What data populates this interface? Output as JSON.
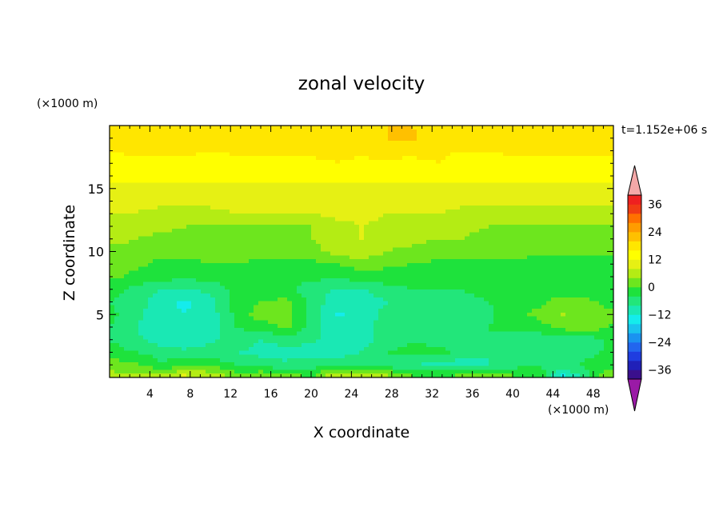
{
  "chart_data": {
    "type": "heatmap",
    "title": "zonal velocity",
    "xlabel": "X coordinate",
    "ylabel": "Z coordinate",
    "x_unit_label": "(×1000 m)",
    "y_unit_label": "(×1000 m)",
    "time_label": "t=1.152e+06 s",
    "xlim": [
      0,
      50
    ],
    "ylim": [
      0,
      20
    ],
    "xticks": [
      4,
      8,
      12,
      16,
      20,
      24,
      28,
      32,
      36,
      40,
      44,
      48
    ],
    "xtick_labels": [
      "4",
      "8",
      "12",
      "16",
      "20",
      "24",
      "28",
      "32",
      "36",
      "40",
      "44",
      "48"
    ],
    "yticks": [
      5,
      10,
      15
    ],
    "ytick_labels": [
      "5",
      "10",
      "15"
    ],
    "z_levels": [
      -40,
      -36,
      -32,
      -28,
      -24,
      -20,
      -16,
      -12,
      -8,
      -4,
      0,
      4,
      8,
      12,
      16,
      20,
      24,
      28,
      32,
      36,
      40
    ],
    "colorbar_tick_labels": [
      "36",
      "24",
      "12",
      "0",
      "−12",
      "−24",
      "−36"
    ],
    "colorbar_tick_values": [
      36,
      24,
      12,
      0,
      -12,
      -24,
      -36
    ],
    "colorbar_colors": [
      "#9a1aa6",
      "#3a0f8c",
      "#2020b8",
      "#1f3de0",
      "#2266ee",
      "#1a93f0",
      "#1ac3ee",
      "#14ecec",
      "#1ae8b4",
      "#22e67a",
      "#1ee23c",
      "#6de61e",
      "#b4ec14",
      "#e6f014",
      "#ffff00",
      "#ffe600",
      "#ffc000",
      "#ff9c00",
      "#ff7000",
      "#f03c14",
      "#ee2020",
      "#f4a8a8"
    ],
    "colorbar_extend": "both",
    "x": [
      0,
      2.5,
      5,
      7.5,
      10,
      12.5,
      15,
      17.5,
      20,
      22.5,
      25,
      27.5,
      30,
      32.5,
      35,
      37.5,
      40,
      42.5,
      45,
      47.5,
      50
    ],
    "z": [
      0,
      1,
      2,
      3,
      4,
      5,
      6,
      7,
      8,
      9,
      10,
      11,
      12,
      13,
      14,
      15,
      16,
      17,
      18,
      19,
      20
    ],
    "values": [
      [
        6,
        5,
        7,
        10,
        8,
        3,
        5,
        3,
        0,
        10,
        8,
        6,
        1,
        1,
        2,
        6,
        1,
        0,
        -14,
        -5,
        6
      ],
      [
        2,
        1,
        -3,
        -2,
        -1,
        -4,
        -6,
        -7,
        -6,
        -5,
        -5,
        -6,
        -8,
        -9,
        -10,
        -8,
        -6,
        -4,
        -6,
        -3,
        -2
      ],
      [
        -2,
        -4,
        -6,
        -7,
        -6,
        -8,
        -9,
        -10,
        -10,
        -10,
        -8,
        -4,
        -3,
        -2,
        -6,
        -8,
        -7,
        -8,
        -6,
        -5,
        -3
      ],
      [
        -4,
        -7,
        -10,
        -11,
        -9,
        -6,
        -8,
        -6,
        -7,
        -11,
        -10,
        -6,
        -4,
        -6,
        -8,
        -4,
        -5,
        -6,
        -8,
        -6,
        -3
      ],
      [
        -4,
        -8,
        -11,
        -12,
        -11,
        -4,
        -2,
        1,
        -5,
        -12,
        -11,
        -5,
        -7,
        -8,
        -7,
        -4,
        -3,
        -2,
        2,
        3,
        -1
      ],
      [
        -3,
        -6,
        -11,
        -12,
        -10,
        -3,
        2,
        2,
        -6,
        -12,
        -12,
        -6,
        -5,
        -6,
        -6,
        -5,
        -2,
        1,
        4,
        3,
        1
      ],
      [
        -4,
        -6,
        -10,
        -13,
        -9,
        -3,
        0,
        1,
        -5,
        -11,
        -12,
        -8,
        -5,
        -5,
        -5,
        -4,
        -3,
        -1,
        2,
        1,
        -2
      ],
      [
        -2,
        -5,
        -8,
        -8,
        -7,
        -3,
        -2,
        -3,
        -6,
        -8,
        -8,
        -5,
        -4,
        -4,
        -4,
        -3,
        -3,
        -3,
        -2,
        -3,
        -3
      ],
      [
        1,
        -1,
        -2,
        -3,
        -2,
        -1,
        -2,
        -3,
        -3,
        -3,
        -2,
        -2,
        -3,
        -4,
        -3,
        -4,
        -4,
        -4,
        -4,
        -4,
        -3
      ],
      [
        2,
        1,
        -1,
        -1,
        0,
        0,
        -1,
        -1,
        -1,
        0,
        2,
        1,
        0,
        -1,
        -1,
        -2,
        -1,
        -2,
        -3,
        -3,
        -2
      ],
      [
        3,
        3,
        1,
        1,
        1,
        2,
        1,
        1,
        2,
        6,
        7,
        4,
        3,
        2,
        2,
        2,
        2,
        1,
        2,
        1,
        1
      ],
      [
        5,
        4,
        3,
        3,
        3,
        3,
        2,
        2,
        4,
        7,
        8,
        6,
        5,
        4,
        4,
        3,
        3,
        2,
        3,
        2,
        2
      ],
      [
        7,
        6,
        5,
        4,
        4,
        4,
        3,
        3,
        4,
        7,
        8,
        7,
        6,
        5,
        5,
        4,
        4,
        3,
        4,
        3,
        4
      ],
      [
        8,
        8,
        7,
        7,
        7,
        8,
        8,
        8,
        8,
        9,
        9,
        8,
        8,
        8,
        7,
        7,
        7,
        7,
        7,
        7,
        7
      ],
      [
        9,
        9,
        9,
        9,
        9,
        9,
        9,
        10,
        10,
        10,
        10,
        10,
        10,
        10,
        9,
        9,
        9,
        9,
        9,
        9,
        9
      ],
      [
        11,
        11,
        11,
        11,
        11,
        11,
        11,
        11,
        11,
        11,
        11,
        11,
        11,
        11,
        11,
        11,
        11,
        11,
        11,
        11,
        11
      ],
      [
        13,
        13,
        13,
        13,
        13,
        13,
        13,
        13,
        13,
        13,
        13,
        13,
        13,
        13,
        13,
        13,
        13,
        13,
        13,
        13,
        13
      ],
      [
        14,
        15,
        15,
        15,
        14,
        14,
        15,
        15,
        15,
        16,
        15,
        15,
        15,
        16,
        14,
        14,
        15,
        15,
        15,
        15,
        15
      ],
      [
        16,
        17,
        17,
        17,
        16,
        17,
        17,
        17,
        17,
        17,
        17,
        18,
        17,
        17,
        16,
        16,
        17,
        17,
        17,
        17,
        17
      ],
      [
        17,
        17,
        18,
        18,
        17,
        18,
        18,
        18,
        18,
        18,
        18,
        20,
        21,
        18,
        17,
        17,
        18,
        18,
        18,
        18,
        17
      ],
      [
        17,
        17,
        18,
        18,
        18,
        19,
        19,
        19,
        18,
        18,
        18,
        20,
        20,
        18,
        17,
        17,
        18,
        19,
        18,
        18,
        17
      ]
    ]
  }
}
